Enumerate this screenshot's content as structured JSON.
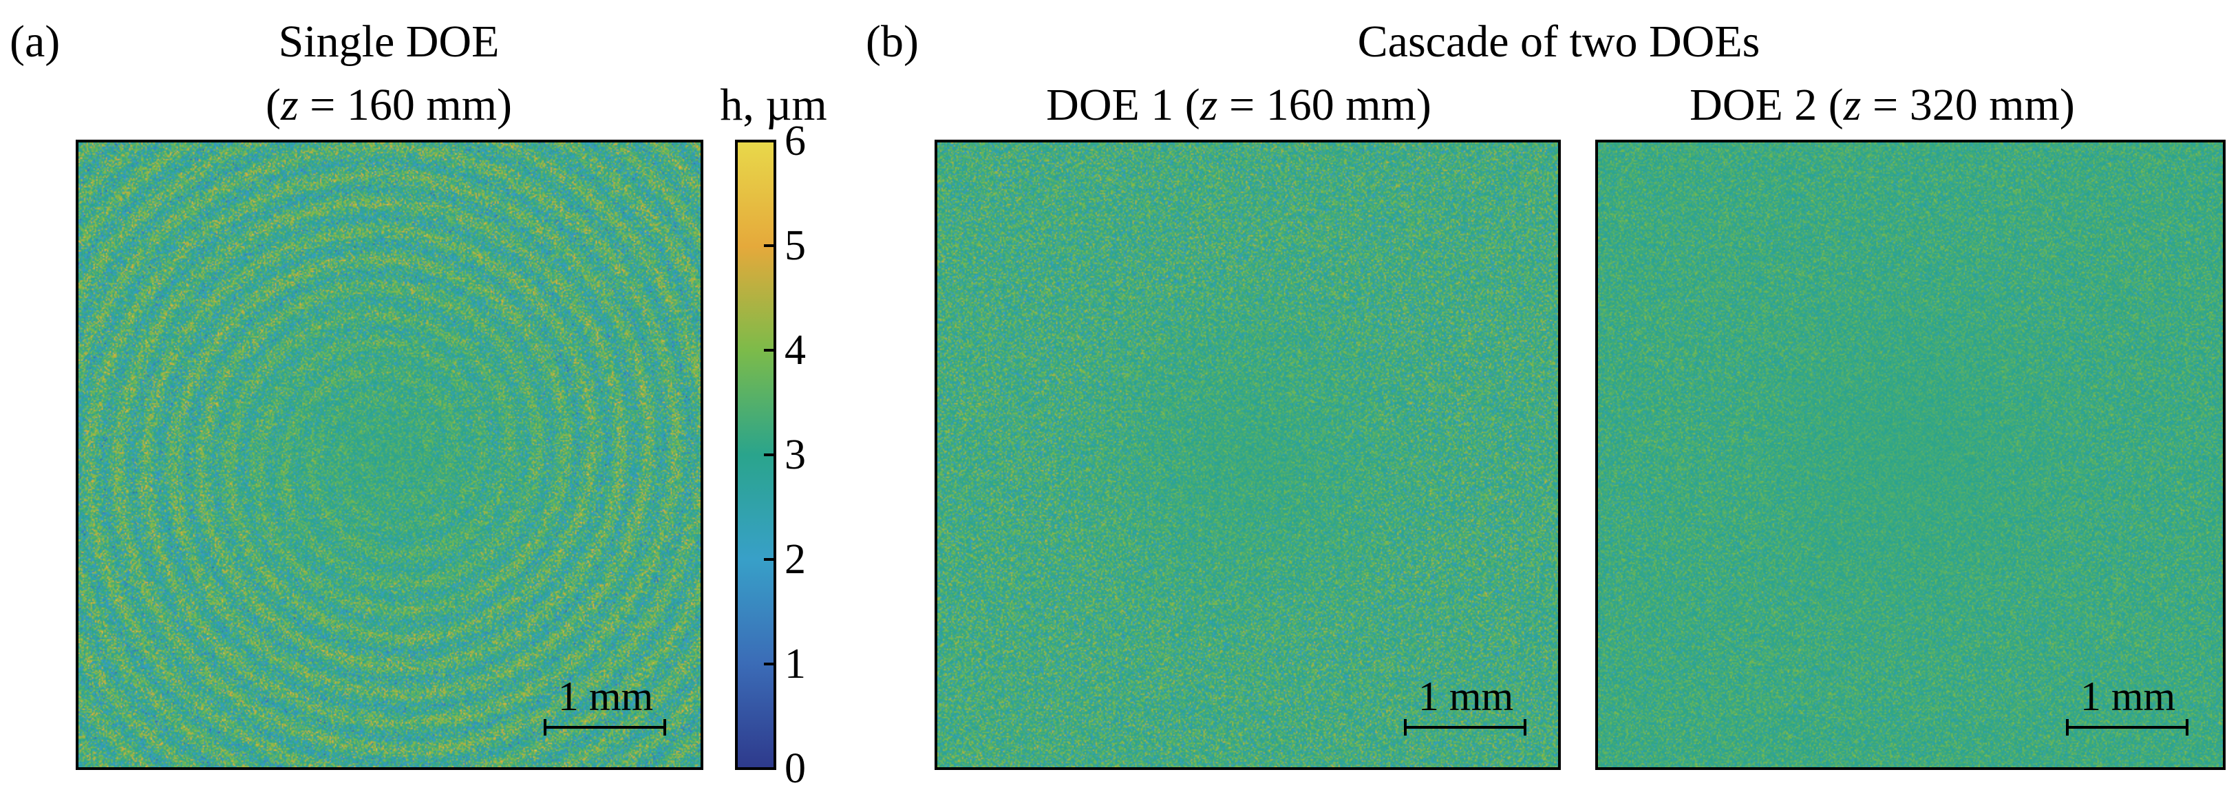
{
  "figure": {
    "panel_a": {
      "label": "(a)",
      "title_line1": "Single DOE",
      "title_z_var": "z",
      "title_z_rest": " = 160 mm",
      "scalebar_label": "1 mm"
    },
    "panel_b": {
      "label": "(b)",
      "title": "Cascade of two DOEs",
      "doe1": {
        "title_prefix": "DOE 1 (",
        "title_z_var": "z",
        "title_z_rest": " = 160 mm)",
        "scalebar_label": "1 mm"
      },
      "doe2": {
        "title_prefix": "DOE 2 (",
        "title_z_var": "z",
        "title_z_rest": " = 320 mm)",
        "scalebar_label": "1 mm"
      }
    },
    "colorbar": {
      "title": "h, µm",
      "ticks": [
        "6",
        "5",
        "4",
        "3",
        "2",
        "1",
        "0"
      ],
      "colormap": [
        "#2e3a8c",
        "#3b6cb7",
        "#38a0c8",
        "#2aa48c",
        "#7cbb4a",
        "#e5a93b",
        "#e8d84a"
      ]
    },
    "paren_open": "(",
    "paren_close": ")"
  }
}
